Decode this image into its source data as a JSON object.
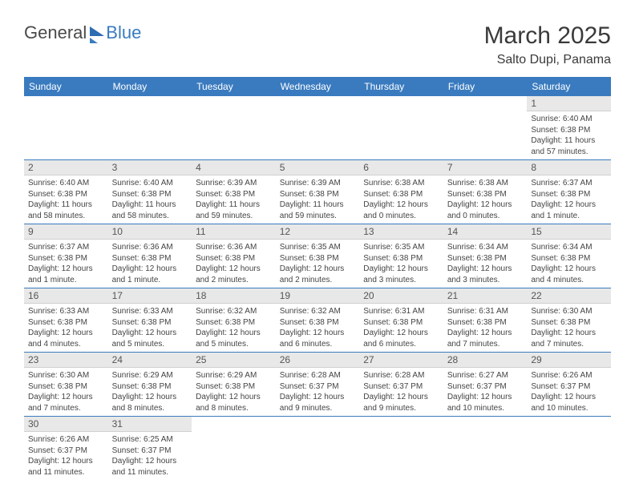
{
  "logo": {
    "part1": "General",
    "part2": "Blue"
  },
  "title": "March 2025",
  "location": "Salto Dupi, Panama",
  "colors": {
    "header_bg": "#3a7bbf",
    "header_text": "#ffffff",
    "daynum_bg": "#e8e8e8",
    "border": "#3a7bbf",
    "body_text": "#444"
  },
  "weekdays": [
    "Sunday",
    "Monday",
    "Tuesday",
    "Wednesday",
    "Thursday",
    "Friday",
    "Saturday"
  ],
  "weeks": [
    [
      null,
      null,
      null,
      null,
      null,
      null,
      {
        "n": "1",
        "sr": "Sunrise: 6:40 AM",
        "ss": "Sunset: 6:38 PM",
        "dl": "Daylight: 11 hours and 57 minutes."
      }
    ],
    [
      {
        "n": "2",
        "sr": "Sunrise: 6:40 AM",
        "ss": "Sunset: 6:38 PM",
        "dl": "Daylight: 11 hours and 58 minutes."
      },
      {
        "n": "3",
        "sr": "Sunrise: 6:40 AM",
        "ss": "Sunset: 6:38 PM",
        "dl": "Daylight: 11 hours and 58 minutes."
      },
      {
        "n": "4",
        "sr": "Sunrise: 6:39 AM",
        "ss": "Sunset: 6:38 PM",
        "dl": "Daylight: 11 hours and 59 minutes."
      },
      {
        "n": "5",
        "sr": "Sunrise: 6:39 AM",
        "ss": "Sunset: 6:38 PM",
        "dl": "Daylight: 11 hours and 59 minutes."
      },
      {
        "n": "6",
        "sr": "Sunrise: 6:38 AM",
        "ss": "Sunset: 6:38 PM",
        "dl": "Daylight: 12 hours and 0 minutes."
      },
      {
        "n": "7",
        "sr": "Sunrise: 6:38 AM",
        "ss": "Sunset: 6:38 PM",
        "dl": "Daylight: 12 hours and 0 minutes."
      },
      {
        "n": "8",
        "sr": "Sunrise: 6:37 AM",
        "ss": "Sunset: 6:38 PM",
        "dl": "Daylight: 12 hours and 1 minute."
      }
    ],
    [
      {
        "n": "9",
        "sr": "Sunrise: 6:37 AM",
        "ss": "Sunset: 6:38 PM",
        "dl": "Daylight: 12 hours and 1 minute."
      },
      {
        "n": "10",
        "sr": "Sunrise: 6:36 AM",
        "ss": "Sunset: 6:38 PM",
        "dl": "Daylight: 12 hours and 1 minute."
      },
      {
        "n": "11",
        "sr": "Sunrise: 6:36 AM",
        "ss": "Sunset: 6:38 PM",
        "dl": "Daylight: 12 hours and 2 minutes."
      },
      {
        "n": "12",
        "sr": "Sunrise: 6:35 AM",
        "ss": "Sunset: 6:38 PM",
        "dl": "Daylight: 12 hours and 2 minutes."
      },
      {
        "n": "13",
        "sr": "Sunrise: 6:35 AM",
        "ss": "Sunset: 6:38 PM",
        "dl": "Daylight: 12 hours and 3 minutes."
      },
      {
        "n": "14",
        "sr": "Sunrise: 6:34 AM",
        "ss": "Sunset: 6:38 PM",
        "dl": "Daylight: 12 hours and 3 minutes."
      },
      {
        "n": "15",
        "sr": "Sunrise: 6:34 AM",
        "ss": "Sunset: 6:38 PM",
        "dl": "Daylight: 12 hours and 4 minutes."
      }
    ],
    [
      {
        "n": "16",
        "sr": "Sunrise: 6:33 AM",
        "ss": "Sunset: 6:38 PM",
        "dl": "Daylight: 12 hours and 4 minutes."
      },
      {
        "n": "17",
        "sr": "Sunrise: 6:33 AM",
        "ss": "Sunset: 6:38 PM",
        "dl": "Daylight: 12 hours and 5 minutes."
      },
      {
        "n": "18",
        "sr": "Sunrise: 6:32 AM",
        "ss": "Sunset: 6:38 PM",
        "dl": "Daylight: 12 hours and 5 minutes."
      },
      {
        "n": "19",
        "sr": "Sunrise: 6:32 AM",
        "ss": "Sunset: 6:38 PM",
        "dl": "Daylight: 12 hours and 6 minutes."
      },
      {
        "n": "20",
        "sr": "Sunrise: 6:31 AM",
        "ss": "Sunset: 6:38 PM",
        "dl": "Daylight: 12 hours and 6 minutes."
      },
      {
        "n": "21",
        "sr": "Sunrise: 6:31 AM",
        "ss": "Sunset: 6:38 PM",
        "dl": "Daylight: 12 hours and 7 minutes."
      },
      {
        "n": "22",
        "sr": "Sunrise: 6:30 AM",
        "ss": "Sunset: 6:38 PM",
        "dl": "Daylight: 12 hours and 7 minutes."
      }
    ],
    [
      {
        "n": "23",
        "sr": "Sunrise: 6:30 AM",
        "ss": "Sunset: 6:38 PM",
        "dl": "Daylight: 12 hours and 7 minutes."
      },
      {
        "n": "24",
        "sr": "Sunrise: 6:29 AM",
        "ss": "Sunset: 6:38 PM",
        "dl": "Daylight: 12 hours and 8 minutes."
      },
      {
        "n": "25",
        "sr": "Sunrise: 6:29 AM",
        "ss": "Sunset: 6:38 PM",
        "dl": "Daylight: 12 hours and 8 minutes."
      },
      {
        "n": "26",
        "sr": "Sunrise: 6:28 AM",
        "ss": "Sunset: 6:37 PM",
        "dl": "Daylight: 12 hours and 9 minutes."
      },
      {
        "n": "27",
        "sr": "Sunrise: 6:28 AM",
        "ss": "Sunset: 6:37 PM",
        "dl": "Daylight: 12 hours and 9 minutes."
      },
      {
        "n": "28",
        "sr": "Sunrise: 6:27 AM",
        "ss": "Sunset: 6:37 PM",
        "dl": "Daylight: 12 hours and 10 minutes."
      },
      {
        "n": "29",
        "sr": "Sunrise: 6:26 AM",
        "ss": "Sunset: 6:37 PM",
        "dl": "Daylight: 12 hours and 10 minutes."
      }
    ],
    [
      {
        "n": "30",
        "sr": "Sunrise: 6:26 AM",
        "ss": "Sunset: 6:37 PM",
        "dl": "Daylight: 12 hours and 11 minutes."
      },
      {
        "n": "31",
        "sr": "Sunrise: 6:25 AM",
        "ss": "Sunset: 6:37 PM",
        "dl": "Daylight: 12 hours and 11 minutes."
      },
      null,
      null,
      null,
      null,
      null
    ]
  ]
}
